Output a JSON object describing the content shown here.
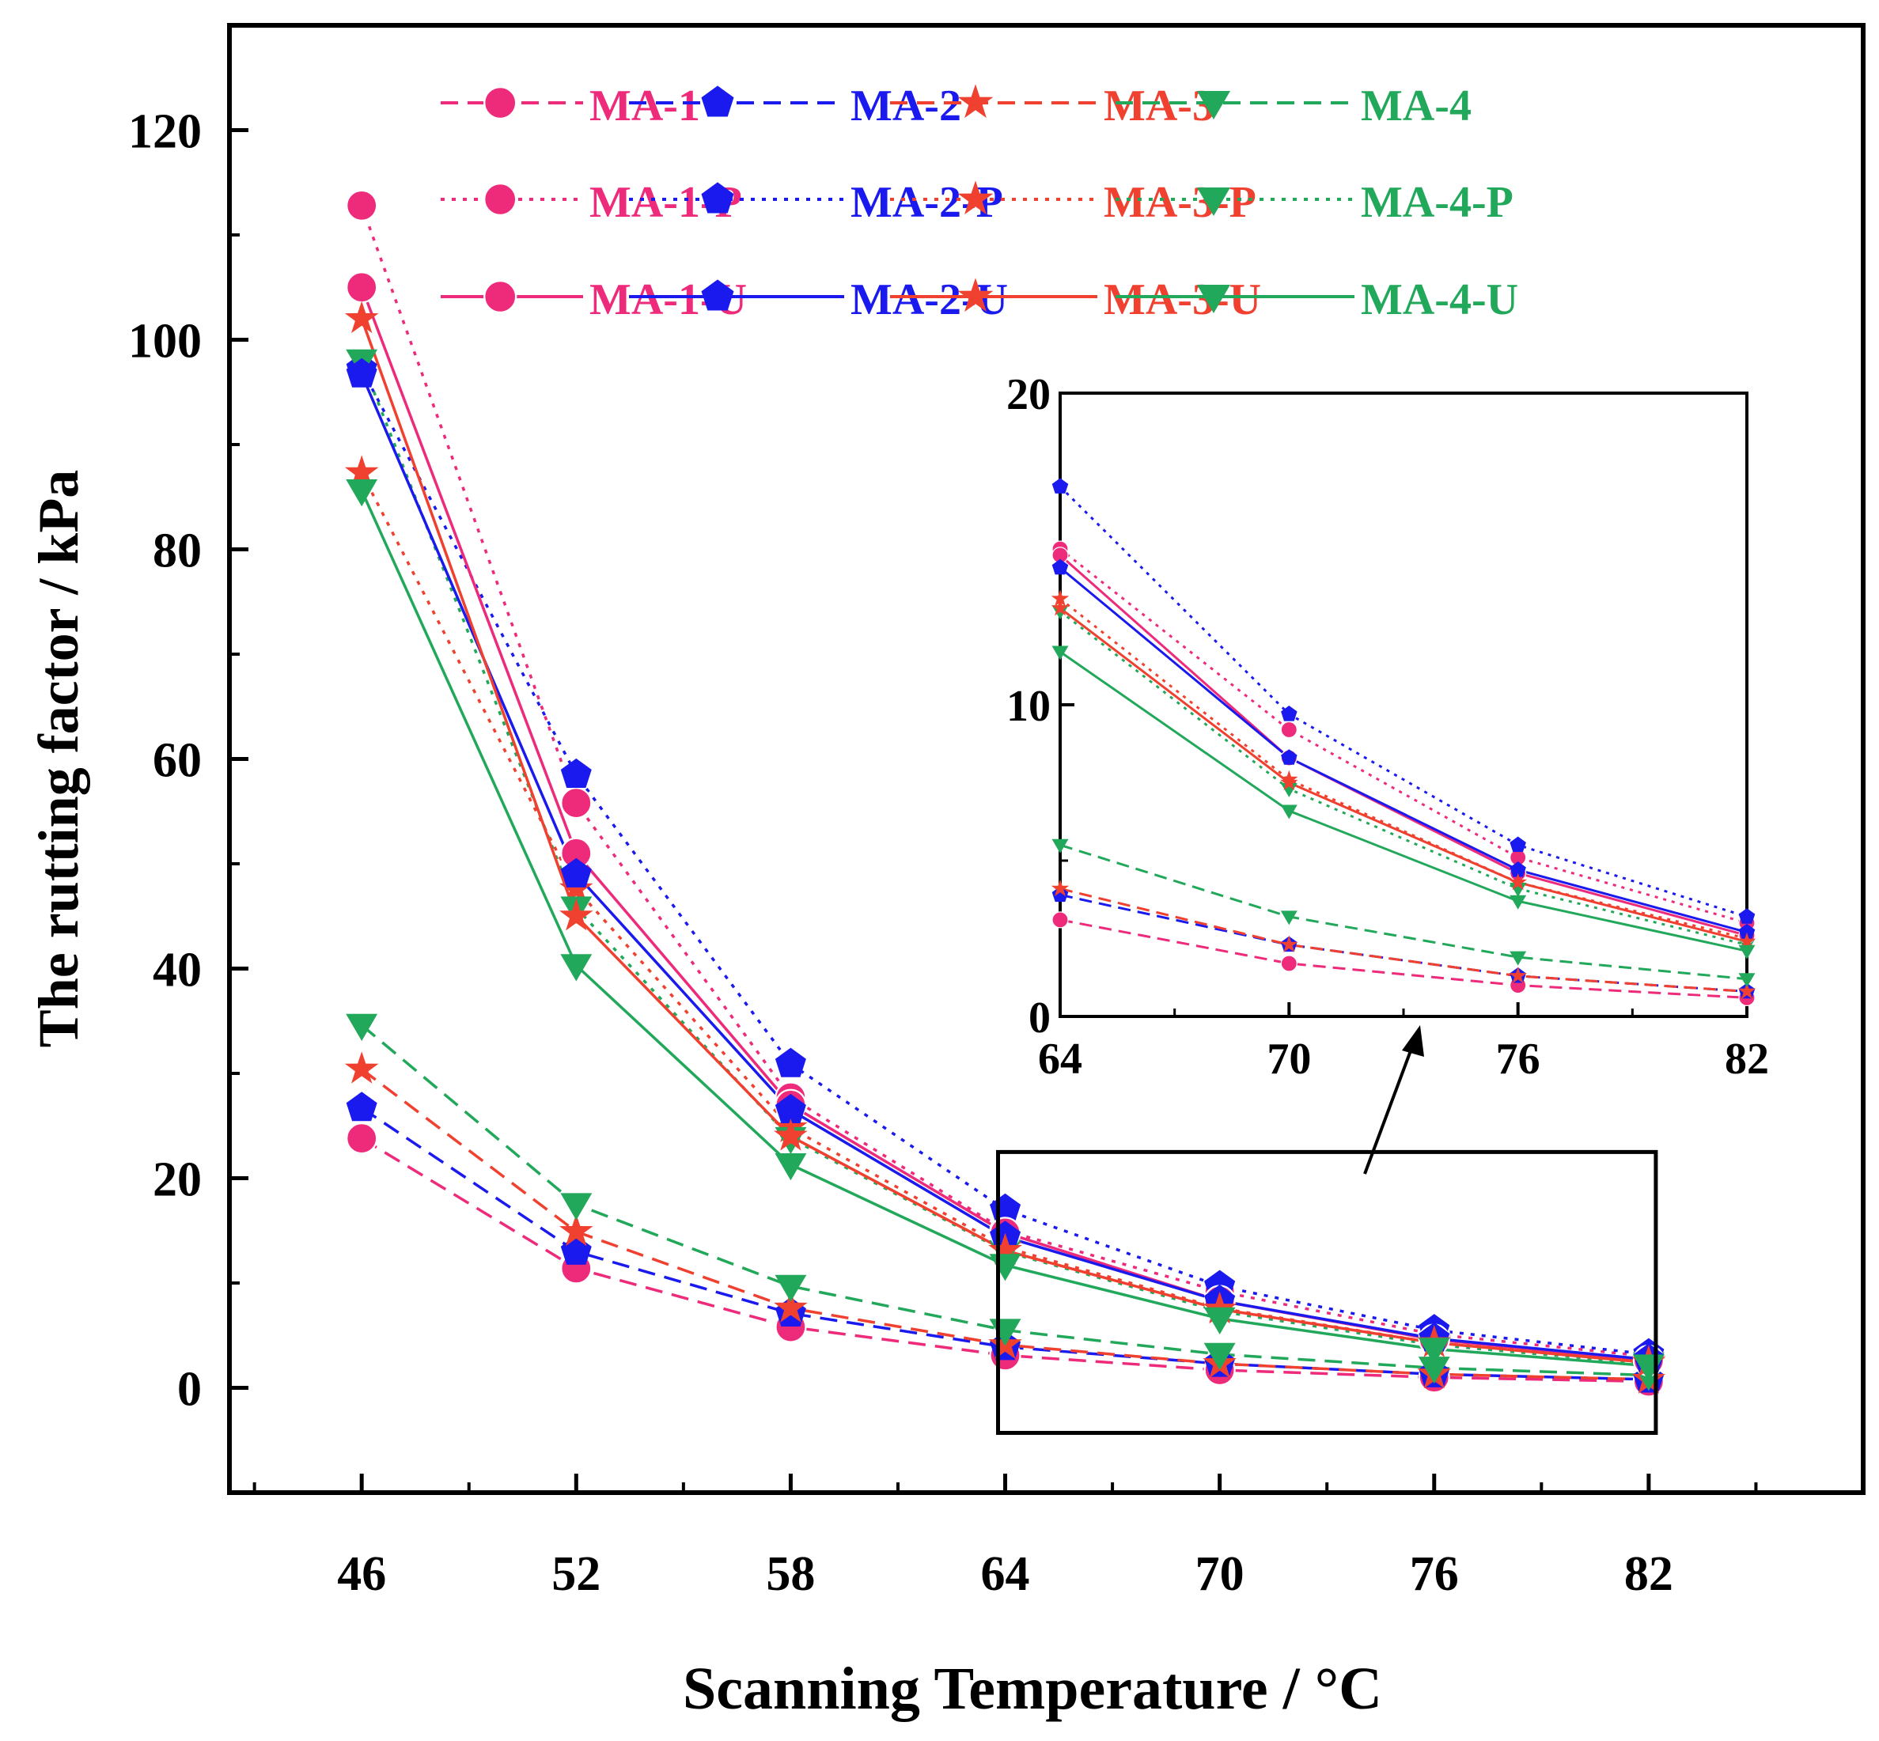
{
  "chart_data": {
    "type": "line",
    "title": "",
    "xlabel": "Scanning Temperature / °C",
    "ylabel": "The rutting factor / kPa",
    "x": [
      46,
      52,
      58,
      64,
      70,
      76,
      82
    ],
    "xlim": [
      42.3,
      88.0
    ],
    "ylim": [
      -10,
      130
    ],
    "xticks": [
      "46",
      "52",
      "58",
      "64",
      "70",
      "76",
      "82"
    ],
    "yticks": [
      "0",
      "20",
      "40",
      "60",
      "80",
      "100",
      "120"
    ],
    "legend_position": "top",
    "series": [
      {
        "name": "MA-1",
        "group": "base",
        "color": "#ee2a7b",
        "marker": "circle",
        "values": [
          23.8,
          11.4,
          5.8,
          3.1,
          1.7,
          1.0,
          0.6
        ]
      },
      {
        "name": "MA-2",
        "group": "base",
        "color": "#1a1aee",
        "marker": "pentagon",
        "values": [
          26.7,
          13.0,
          7.1,
          3.9,
          2.3,
          1.3,
          0.8
        ]
      },
      {
        "name": "MA-3",
        "group": "base",
        "color": "#f04030",
        "marker": "star",
        "values": [
          30.4,
          14.9,
          7.6,
          4.1,
          2.3,
          1.3,
          0.8
        ]
      },
      {
        "name": "MA-4",
        "group": "base",
        "color": "#22a85a",
        "marker": "tri-down",
        "values": [
          34.6,
          17.5,
          9.7,
          5.5,
          3.2,
          1.9,
          1.2
        ]
      },
      {
        "name": "MA-1-P",
        "group": "P",
        "color": "#ee2a7b",
        "marker": "circle",
        "values": [
          112.8,
          55.8,
          27.7,
          15.0,
          9.2,
          5.1,
          3.0
        ]
      },
      {
        "name": "MA-2-P",
        "group": "P",
        "color": "#1a1aee",
        "marker": "pentagon",
        "values": [
          97.2,
          58.5,
          30.9,
          17.0,
          9.7,
          5.5,
          3.2
        ]
      },
      {
        "name": "MA-3-P",
        "group": "P",
        "color": "#f04030",
        "marker": "star",
        "values": [
          87.3,
          47.6,
          24.8,
          13.4,
          7.6,
          4.3,
          2.5
        ]
      },
      {
        "name": "MA-4-P",
        "group": "P",
        "color": "#22a85a",
        "marker": "tri-down",
        "values": [
          98.0,
          45.8,
          23.8,
          13.0,
          7.3,
          4.1,
          2.3
        ]
      },
      {
        "name": "MA-1-U",
        "group": "U",
        "color": "#ee2a7b",
        "marker": "circle",
        "values": [
          105.0,
          51.0,
          27.0,
          14.8,
          8.3,
          4.6,
          2.6
        ]
      },
      {
        "name": "MA-2-U",
        "group": "U",
        "color": "#1a1aee",
        "marker": "pentagon",
        "values": [
          96.7,
          49.0,
          26.5,
          14.4,
          8.3,
          4.7,
          2.7
        ]
      },
      {
        "name": "MA-3-U",
        "group": "U",
        "color": "#f04030",
        "marker": "star",
        "values": [
          102.0,
          45.0,
          24.0,
          13.1,
          7.5,
          4.3,
          2.4
        ]
      },
      {
        "name": "MA-4-U",
        "group": "U",
        "color": "#22a85a",
        "marker": "tri-down",
        "values": [
          85.6,
          40.3,
          21.3,
          11.7,
          6.6,
          3.7,
          2.1
        ]
      }
    ],
    "inset": {
      "x_range": [
        64,
        82
      ],
      "xlim": [
        64,
        82
      ],
      "ylim": [
        0,
        20
      ],
      "xticks": [
        "64",
        "70",
        "76",
        "82"
      ],
      "yticks": [
        "0",
        "10",
        "20"
      ],
      "zoom_region": {
        "x": [
          63.8,
          82.2
        ],
        "y": [
          -4.3,
          22.5
        ]
      }
    }
  }
}
